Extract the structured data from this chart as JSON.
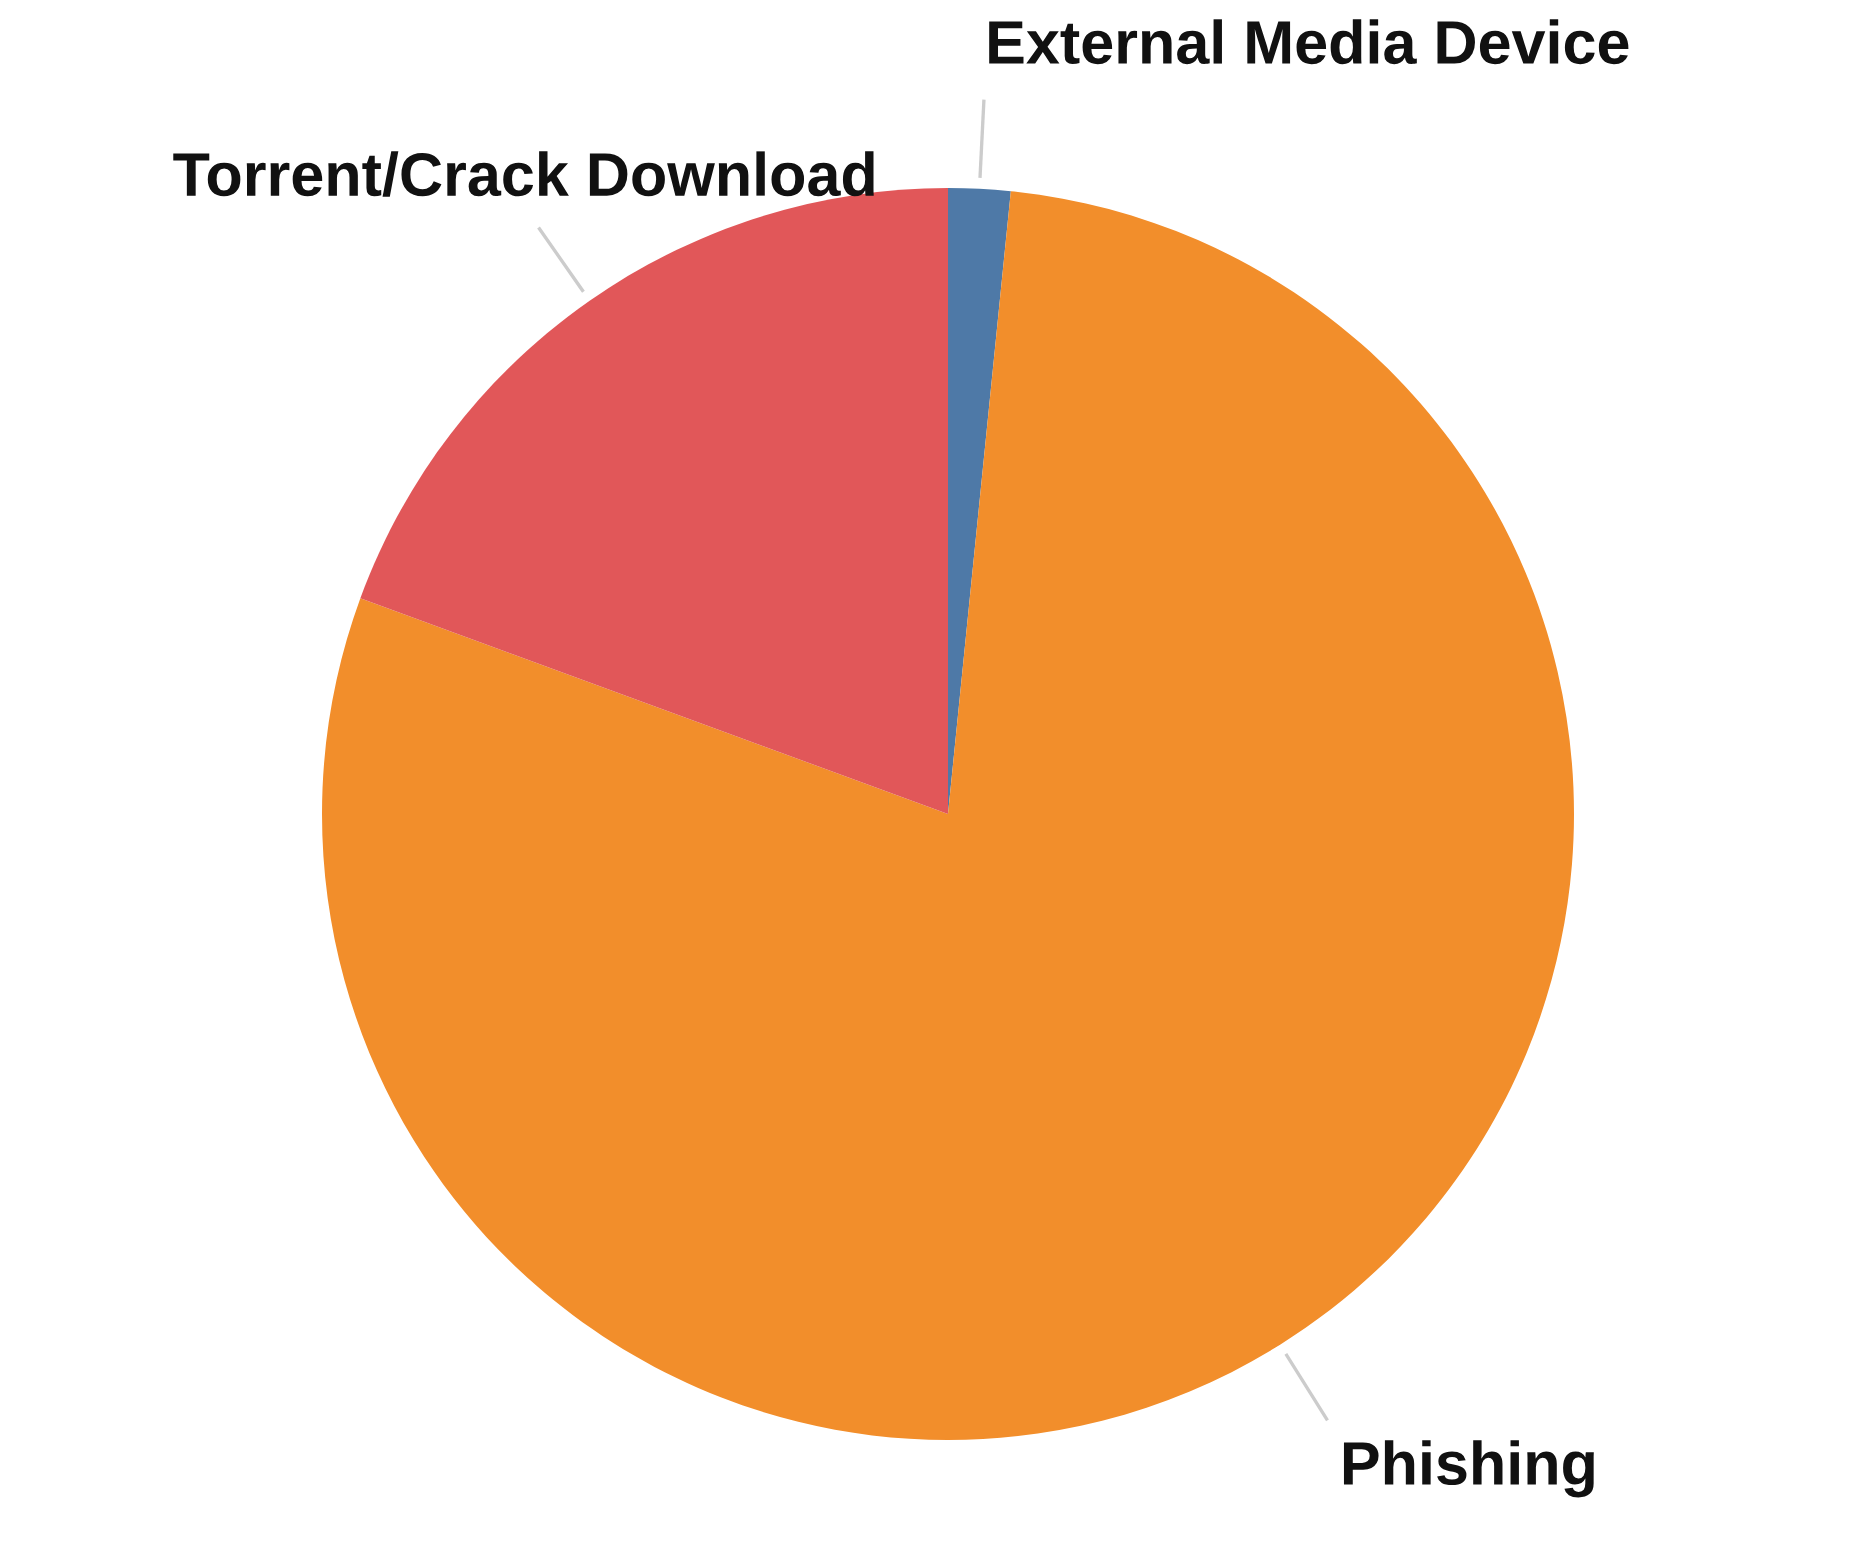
{
  "chart_data": {
    "type": "pie",
    "categories": [
      "External Media Device",
      "Phishing",
      "Torrent/Crack Download"
    ],
    "values": [
      1.6,
      79.0,
      19.4
    ],
    "colors": [
      "#4e79a7",
      "#f28e2b",
      "#e15759"
    ],
    "legend": false
  }
}
